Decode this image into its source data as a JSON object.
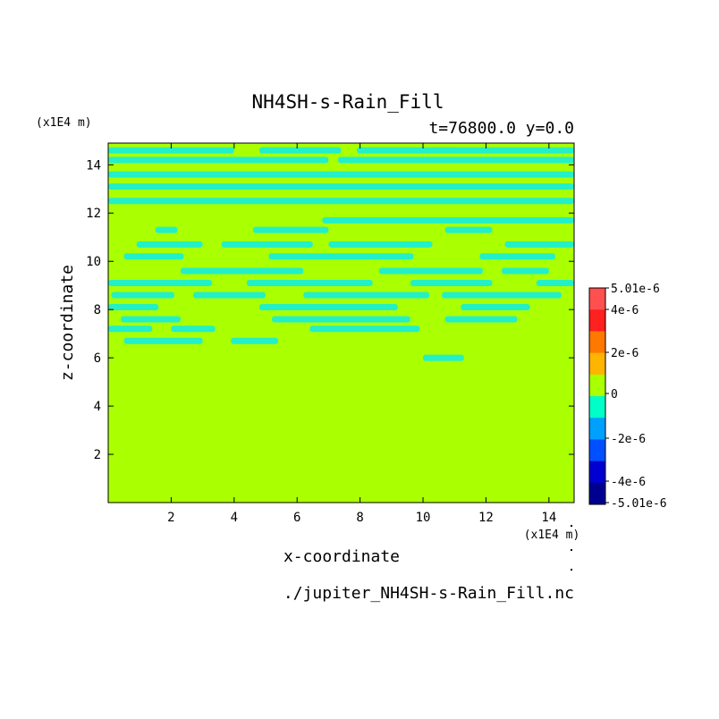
{
  "chart_data": {
    "type": "heatmap",
    "title": "NH4SH-s-Rain_Fill",
    "subtitle": "t=76800.0 y=0.0",
    "xlabel": "x-coordinate",
    "ylabel": "z-coordinate",
    "x_unit": "(x1E4 m)",
    "y_unit": "(x1E4 m)",
    "footer": "./jupiter_NH4SH-s-Rain_Fill.nc",
    "xlim": [
      0,
      14.8
    ],
    "ylim": [
      0,
      14.9
    ],
    "x_ticks": [
      2,
      4,
      6,
      8,
      10,
      12,
      14
    ],
    "y_ticks": [
      2,
      4,
      6,
      8,
      10,
      12,
      14
    ],
    "colorbar": {
      "labels": [
        "5.01e-6",
        "4e-6",
        "2e-6",
        "0",
        "-2e-6",
        "-4e-6",
        "-5.01e-6"
      ],
      "colors": [
        "#ff5050",
        "#ff2020",
        "#ff7800",
        "#ffb400",
        "#aaff00",
        "#00ffc8",
        "#00a0ff",
        "#0050ff",
        "#0000d0",
        "#000090"
      ]
    },
    "field_color": "#aaff00",
    "contour_color": "#22f0c8",
    "bands": [
      {
        "z": 14.6,
        "x": [
          [
            0,
            4.0
          ],
          [
            4.8,
            7.4
          ],
          [
            7.9,
            14.8
          ]
        ]
      },
      {
        "z": 14.2,
        "x": [
          [
            0,
            7.0
          ],
          [
            7.3,
            14.8
          ]
        ]
      },
      {
        "z": 13.6,
        "x": [
          [
            0,
            14.8
          ]
        ]
      },
      {
        "z": 13.1,
        "x": [
          [
            0,
            14.8
          ]
        ]
      },
      {
        "z": 12.5,
        "x": [
          [
            0,
            14.8
          ]
        ]
      },
      {
        "z": 11.7,
        "x": [
          [
            6.8,
            14.8
          ]
        ]
      },
      {
        "z": 11.3,
        "x": [
          [
            1.5,
            2.2
          ],
          [
            4.6,
            7.0
          ],
          [
            10.7,
            12.2
          ]
        ]
      },
      {
        "z": 10.7,
        "x": [
          [
            0.9,
            3.0
          ],
          [
            3.6,
            6.5
          ],
          [
            7.0,
            10.3
          ],
          [
            12.6,
            14.8
          ]
        ]
      },
      {
        "z": 10.2,
        "x": [
          [
            0.5,
            2.4
          ],
          [
            5.1,
            9.7
          ],
          [
            11.8,
            14.2
          ]
        ]
      },
      {
        "z": 9.6,
        "x": [
          [
            2.3,
            6.2
          ],
          [
            8.6,
            11.9
          ],
          [
            12.5,
            14.0
          ]
        ]
      },
      {
        "z": 9.1,
        "x": [
          [
            0,
            3.3
          ],
          [
            4.4,
            8.4
          ],
          [
            9.6,
            12.2
          ],
          [
            13.6,
            14.8
          ]
        ]
      },
      {
        "z": 8.6,
        "x": [
          [
            0.1,
            2.1
          ],
          [
            2.7,
            5.0
          ],
          [
            6.2,
            10.2
          ],
          [
            10.6,
            14.4
          ]
        ]
      },
      {
        "z": 8.1,
        "x": [
          [
            0,
            1.6
          ],
          [
            4.8,
            9.2
          ],
          [
            11.2,
            13.4
          ]
        ]
      },
      {
        "z": 7.6,
        "x": [
          [
            0.4,
            2.3
          ],
          [
            5.2,
            9.6
          ],
          [
            10.7,
            13.0
          ]
        ]
      },
      {
        "z": 7.2,
        "x": [
          [
            0,
            1.4
          ],
          [
            2.0,
            3.4
          ],
          [
            6.4,
            9.9
          ]
        ]
      },
      {
        "z": 6.7,
        "x": [
          [
            0.5,
            3.0
          ],
          [
            3.9,
            5.4
          ]
        ]
      },
      {
        "z": 6.0,
        "x": [
          [
            10.0,
            11.3
          ]
        ]
      }
    ]
  }
}
